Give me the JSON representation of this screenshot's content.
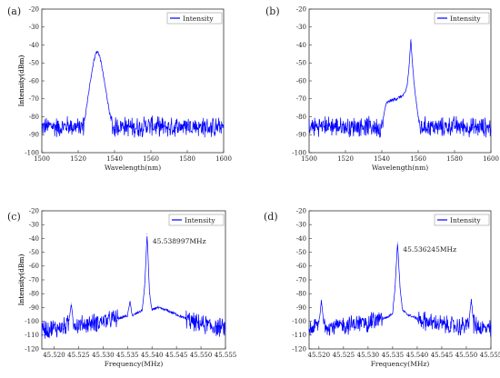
{
  "chart_data": [
    {
      "panel": "(a)",
      "type": "line",
      "xlabel": "Wavelength(nm)",
      "ylabel": "Intensity(dBm)",
      "xlim": [
        1500,
        1600
      ],
      "ylim": [
        -100,
        -20
      ],
      "xticks": [
        "1500",
        "1520",
        "1540",
        "1560",
        "1580",
        "1600"
      ],
      "yticks": [
        "-20",
        "-30",
        "-40",
        "-50",
        "-60",
        "-70",
        "-80",
        "-90",
        "-100"
      ],
      "legend": "top-right",
      "series": [
        {
          "name": "Intensity",
          "color": "#0000ff",
          "x": [
            1500,
            1505,
            1510,
            1515,
            1520,
            1523,
            1524,
            1525,
            1526,
            1527,
            1528,
            1529,
            1530,
            1531,
            1532,
            1533,
            1534,
            1535,
            1536,
            1537,
            1538,
            1539,
            1540,
            1545,
            1550,
            1560,
            1570,
            1580,
            1590,
            1600
          ],
          "y": [
            -86,
            -85,
            -86,
            -85,
            -86,
            -85,
            -79,
            -72,
            -65,
            -58,
            -52,
            -47,
            -44,
            -44,
            -47,
            -52,
            -58,
            -64,
            -70,
            -76,
            -82,
            -86,
            -86,
            -85,
            -86,
            -85,
            -86,
            -85,
            -86,
            -86
          ]
        }
      ]
    },
    {
      "panel": "(b)",
      "type": "line",
      "xlabel": "Wavelength(nm)",
      "ylabel": "Intensity(dBm)",
      "xlim": [
        1500,
        1600
      ],
      "ylim": [
        -100,
        -20
      ],
      "xticks": [
        "1500",
        "1520",
        "1540",
        "1560",
        "1580",
        "1600"
      ],
      "yticks": [
        "-20",
        "-30",
        "-40",
        "-50",
        "-60",
        "-70",
        "-80",
        "-90",
        "-100"
      ],
      "legend": "top-right",
      "series": [
        {
          "name": "Intensity",
          "color": "#0000ff",
          "x": [
            1500,
            1510,
            1520,
            1530,
            1540,
            1541,
            1542,
            1543,
            1545,
            1548,
            1550,
            1552,
            1553,
            1554,
            1555,
            1556,
            1557,
            1558,
            1559,
            1560,
            1561,
            1565,
            1570,
            1580,
            1590,
            1600
          ],
          "y": [
            -86,
            -85,
            -86,
            -85,
            -86,
            -80,
            -74,
            -72,
            -71,
            -70,
            -69,
            -68,
            -66,
            -62,
            -52,
            -37,
            -52,
            -64,
            -72,
            -80,
            -86,
            -85,
            -86,
            -85,
            -86,
            -86
          ]
        }
      ]
    },
    {
      "panel": "(c)",
      "type": "line",
      "xlabel": "Frequency(MHz)",
      "ylabel": "Intensity(dBm)",
      "xlim": [
        45.5175,
        45.555
      ],
      "ylim": [
        -120,
        -20
      ],
      "xticks": [
        "45.520",
        "45.525",
        "45.530",
        "45.535",
        "45.540",
        "45.545",
        "45.550",
        "45.555"
      ],
      "yticks": [
        "-20",
        "-30",
        "-40",
        "-50",
        "-60",
        "-70",
        "-80",
        "-90",
        "-100",
        "-110",
        "-120"
      ],
      "legend": "top-right",
      "annotation": "45.538997MHz",
      "series": [
        {
          "name": "Intensity",
          "color": "#0000ff",
          "x": [
            45.5175,
            45.52,
            45.522,
            45.523,
            45.5235,
            45.524,
            45.525,
            45.528,
            45.53,
            45.533,
            45.535,
            45.5355,
            45.536,
            45.537,
            45.538,
            45.5385,
            45.539,
            45.5395,
            45.54,
            45.541,
            45.543,
            45.545,
            45.548,
            45.55,
            45.553,
            45.555
          ],
          "y": [
            -106,
            -105,
            -104,
            -102,
            -87,
            -102,
            -103,
            -101,
            -100,
            -98,
            -96,
            -86,
            -96,
            -94,
            -92,
            -75,
            -37,
            -80,
            -92,
            -90,
            -92,
            -95,
            -100,
            -102,
            -104,
            -105
          ]
        }
      ]
    },
    {
      "panel": "(d)",
      "type": "line",
      "xlabel": "Frequency(MHz)",
      "ylabel": "Intensity(dBm)",
      "xlim": [
        45.518,
        45.555
      ],
      "ylim": [
        -120,
        -20
      ],
      "xticks": [
        "45.520",
        "45.525",
        "45.530",
        "45.535",
        "45.540",
        "45.545",
        "45.550",
        "45.555"
      ],
      "yticks": [
        "-20",
        "-30",
        "-40",
        "-50",
        "-60",
        "-70",
        "-80",
        "-90",
        "-100",
        "-110",
        "-120"
      ],
      "legend": "top-right",
      "annotation": "45.536245MHz",
      "series": [
        {
          "name": "Intensity",
          "color": "#0000ff",
          "x": [
            45.518,
            45.519,
            45.52,
            45.5205,
            45.521,
            45.523,
            45.525,
            45.528,
            45.53,
            45.532,
            45.534,
            45.535,
            45.5355,
            45.536,
            45.5365,
            45.537,
            45.538,
            45.54,
            45.543,
            45.546,
            45.549,
            45.5505,
            45.551,
            45.5515,
            45.553,
            45.555
          ],
          "y": [
            -106,
            -104,
            -102,
            -85,
            -102,
            -104,
            -103,
            -102,
            -101,
            -99,
            -97,
            -94,
            -75,
            -43,
            -75,
            -92,
            -95,
            -98,
            -101,
            -103,
            -104,
            -102,
            -84,
            -102,
            -105,
            -106
          ]
        }
      ]
    }
  ]
}
